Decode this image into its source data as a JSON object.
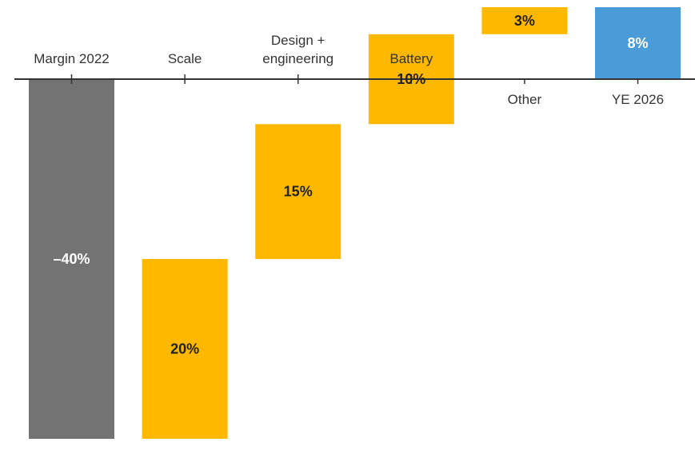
{
  "chart_data": {
    "type": "bar",
    "subtype": "waterfall",
    "categories": [
      "Margin 2022",
      "Scale",
      "Design + engineering",
      "Battery",
      "Other",
      "YE 2026"
    ],
    "category_lines": [
      [
        "Margin 2022"
      ],
      [
        "Scale"
      ],
      [
        "Design +",
        "engineering"
      ],
      [
        "Battery"
      ],
      [
        "Other"
      ],
      [
        "YE 2026"
      ]
    ],
    "values": [
      -40,
      20,
      15,
      10,
      3,
      8
    ],
    "kinds": [
      "total",
      "delta",
      "delta",
      "delta",
      "delta",
      "total"
    ],
    "value_labels": [
      "–40%",
      "20%",
      "15%",
      "10%",
      "3%",
      "8%"
    ],
    "label_positions": [
      "above",
      "above",
      "above",
      "above",
      "below",
      "below"
    ],
    "units": "%",
    "ylim": [
      -40,
      8
    ],
    "title": "",
    "xlabel": "",
    "ylabel": "",
    "grid": false,
    "colors": {
      "total_start": "#737373",
      "delta": "#FFB800",
      "total_end": "#4A9CD8",
      "axis": "#333333",
      "label_dark": "#222222",
      "label_light": "#ffffff"
    }
  }
}
